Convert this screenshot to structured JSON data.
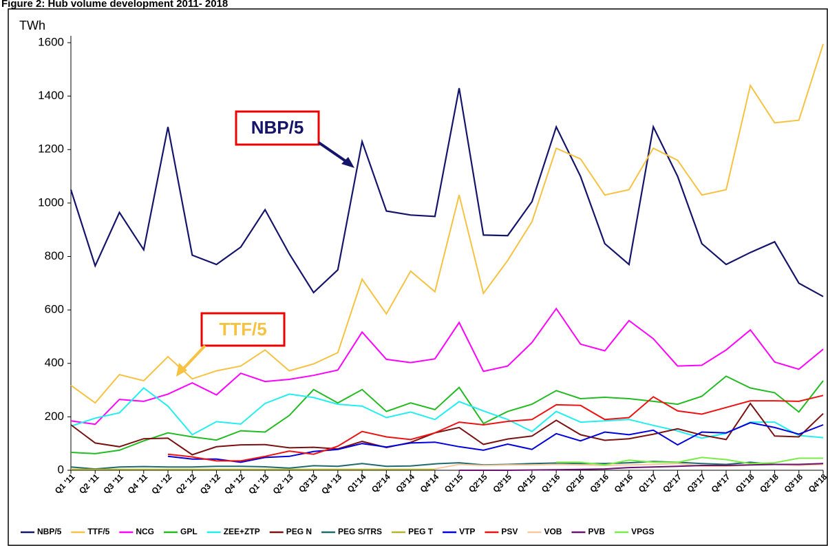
{
  "chart_data": {
    "type": "line",
    "title": "Figure 2: Hub volume development 2011- 2018",
    "y_label": "TWh",
    "annotations": [
      {
        "text": "NBP/5"
      },
      {
        "text": "TTF/5"
      }
    ],
    "ylim": [
      0,
      1600
    ],
    "yticks": [
      0,
      200,
      400,
      600,
      800,
      1000,
      1200,
      1400,
      1600
    ],
    "grid": false,
    "legend": "bottom",
    "categories": [
      "Q1 '11",
      "Q2 '11",
      "Q3 '11",
      "Q4 '11",
      "Q1 '12",
      "Q2 '12",
      "Q3 '12",
      "Q4 '12",
      "Q1 '13",
      "Q2 '13",
      "Q3'13",
      "Q4 '13",
      "Q1'14",
      "Q2'14",
      "Q3'14",
      "Q4'14",
      "Q1'15",
      "Q2'15",
      "Q3'15",
      "Q4'15",
      "Q1'16",
      "Q2'16",
      "Q3'16",
      "Q4'16",
      "Q1'17",
      "Q2'17",
      "Q3'17",
      "Q4'17",
      "Q1'18",
      "Q2'18",
      "Q3'18",
      "Q4'18"
    ],
    "series": [
      {
        "name": "NBP/5",
        "color": "#14146b",
        "values": [
          1050,
          765,
          965,
          825,
          1285,
          805,
          770,
          835,
          975,
          810,
          665,
          750,
          1230,
          970,
          955,
          950,
          1430,
          880,
          878,
          1005,
          1285,
          1100,
          848,
          770,
          1285,
          1100,
          848,
          770,
          815,
          855,
          700,
          650
        ]
      },
      {
        "name": "TTF/5",
        "color": "#f5c242",
        "values": [
          318,
          252,
          358,
          335,
          425,
          342,
          372,
          390,
          450,
          372,
          398,
          440,
          715,
          585,
          745,
          668,
          1030,
          662,
          785,
          930,
          1205,
          1165,
          1030,
          1050,
          1205,
          1160,
          1030,
          1050,
          1440,
          1300,
          1310,
          1595
        ]
      },
      {
        "name": "NCG",
        "color": "#ff00ff",
        "values": [
          185,
          172,
          265,
          258,
          285,
          327,
          282,
          363,
          332,
          340,
          355,
          375,
          517,
          415,
          403,
          417,
          553,
          370,
          390,
          478,
          605,
          472,
          447,
          560,
          492,
          390,
          393,
          450,
          525,
          405,
          378,
          453
        ]
      },
      {
        "name": "GPL",
        "color": "#22bb22",
        "values": [
          67,
          62,
          75,
          110,
          140,
          125,
          113,
          148,
          143,
          205,
          302,
          252,
          302,
          220,
          252,
          227,
          310,
          175,
          220,
          247,
          298,
          268,
          273,
          268,
          258,
          247,
          277,
          352,
          308,
          290,
          218,
          335
        ]
      },
      {
        "name": "ZEE+ZTP",
        "color": "#22eeee",
        "values": [
          165,
          195,
          215,
          308,
          240,
          133,
          182,
          173,
          250,
          285,
          272,
          247,
          240,
          197,
          218,
          190,
          257,
          222,
          190,
          145,
          220,
          180,
          185,
          190,
          168,
          147,
          120,
          138,
          180,
          180,
          130,
          122
        ]
      },
      {
        "name": "PEG N",
        "color": "#7b1010",
        "values": [
          170,
          102,
          88,
          118,
          120,
          58,
          88,
          95,
          96,
          84,
          86,
          80,
          108,
          85,
          104,
          140,
          160,
          97,
          117,
          128,
          187,
          133,
          112,
          118,
          135,
          155,
          132,
          115,
          250,
          128,
          125,
          212
        ]
      },
      {
        "name": "PEG S/TRS",
        "color": "#1f6b6b",
        "values": [
          12,
          5,
          12,
          14,
          12,
          12,
          15,
          15,
          13,
          8,
          17,
          15,
          25,
          15,
          16,
          24,
          28,
          20,
          22,
          25,
          27,
          25,
          25,
          28,
          33,
          30,
          25,
          22,
          30,
          22,
          20,
          25
        ]
      },
      {
        "name": "PEG T",
        "color": "#b5b52a",
        "values": [
          3,
          3,
          3,
          3,
          3,
          3,
          3,
          3,
          3,
          3,
          3,
          3,
          3,
          3,
          3,
          3,
          null,
          null,
          null,
          null,
          null,
          null,
          null,
          null,
          null,
          null,
          null,
          null,
          null,
          null,
          null,
          null
        ]
      },
      {
        "name": "VTP",
        "color": "#0000dd",
        "values": [
          null,
          null,
          null,
          null,
          52,
          42,
          42,
          30,
          48,
          52,
          70,
          78,
          100,
          87,
          102,
          105,
          88,
          75,
          98,
          78,
          137,
          110,
          143,
          133,
          150,
          95,
          143,
          140,
          178,
          160,
          135,
          170
        ]
      },
      {
        "name": "PSV",
        "color": "#ee1111",
        "values": [
          null,
          null,
          null,
          null,
          60,
          50,
          35,
          35,
          52,
          72,
          60,
          90,
          145,
          125,
          115,
          140,
          180,
          170,
          183,
          190,
          245,
          243,
          190,
          197,
          275,
          222,
          210,
          235,
          260,
          260,
          258,
          280
        ]
      },
      {
        "name": "VOB",
        "color": "#f8c8a0",
        "values": [
          null,
          null,
          null,
          null,
          null,
          null,
          null,
          null,
          null,
          null,
          null,
          null,
          null,
          null,
          null,
          5,
          22,
          18,
          20,
          20,
          22,
          20,
          18,
          20,
          22,
          25,
          15,
          15,
          20,
          22,
          18,
          22
        ]
      },
      {
        "name": "PVB",
        "color": "#6a1070",
        "values": [
          null,
          null,
          null,
          null,
          null,
          null,
          null,
          null,
          null,
          null,
          null,
          null,
          null,
          null,
          null,
          null,
          0,
          0,
          0,
          1,
          2,
          3,
          5,
          10,
          12,
          15,
          18,
          18,
          20,
          22,
          22,
          25
        ]
      },
      {
        "name": "VPGS",
        "color": "#77ee44",
        "values": [
          null,
          null,
          null,
          null,
          null,
          null,
          null,
          null,
          null,
          null,
          null,
          null,
          null,
          null,
          null,
          null,
          null,
          null,
          null,
          null,
          30,
          30,
          20,
          38,
          30,
          30,
          48,
          40,
          25,
          28,
          45,
          45
        ]
      }
    ]
  }
}
